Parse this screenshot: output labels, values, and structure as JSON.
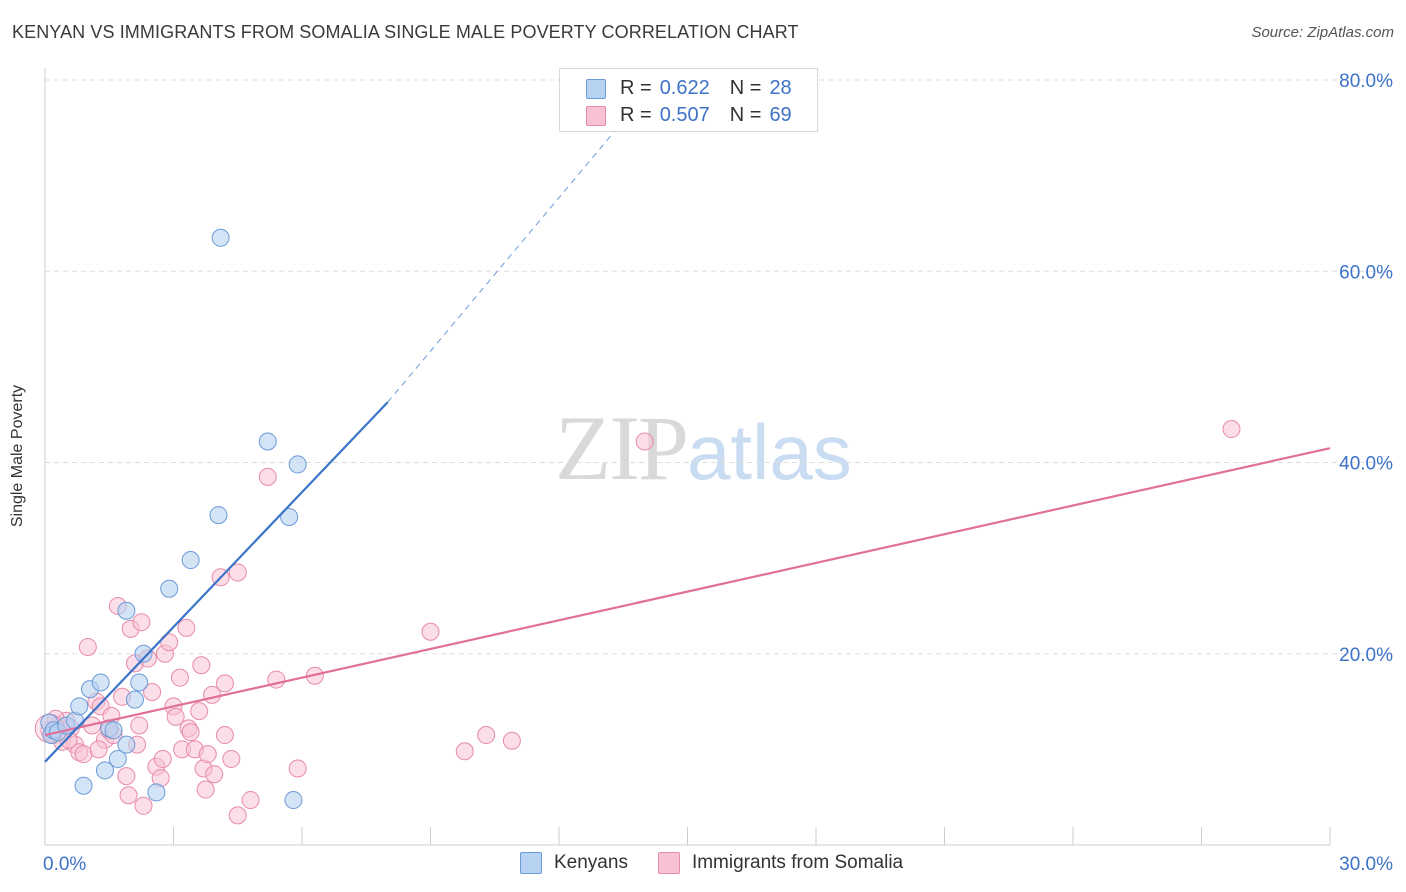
{
  "title": "KENYAN VS IMMIGRANTS FROM SOMALIA SINGLE MALE POVERTY CORRELATION CHART",
  "source": "Source: ZipAtlas.com",
  "watermark": {
    "zip": "ZIP",
    "atlas": "atlas"
  },
  "legend": {
    "rows": [
      {
        "r_label": "R =",
        "r_value": "0.622",
        "n_label": "N =",
        "n_value": "28"
      },
      {
        "r_label": "R =",
        "r_value": "0.507",
        "n_label": "N =",
        "n_value": "69"
      }
    ]
  },
  "bottom_legend": {
    "kenyans": "Kenyans",
    "somalia": "Immigrants from Somalia"
  },
  "colors": {
    "kenyan_fill": "#b8d2f2",
    "kenyan_stroke": "#6b9ad8",
    "kenyan_line": "#3a73c8",
    "somalia_fill": "#f7c3d4",
    "somalia_stroke": "#e88aab",
    "somalia_line": "#e0709a",
    "tick_label": "#3d72c8",
    "grid": "#dddddd"
  },
  "chart_data": {
    "type": "scatter",
    "title": "KENYAN VS IMMIGRANTS FROM SOMALIA SINGLE MALE POVERTY CORRELATION CHART",
    "xlabel": "",
    "ylabel": "Single Male Poverty",
    "xlim": [
      0,
      30
    ],
    "ylim": [
      0,
      80
    ],
    "x_tick_labels": [
      "0.0%",
      "30.0%"
    ],
    "y_tick_labels": [
      "20.0%",
      "40.0%",
      "60.0%",
      "80.0%"
    ],
    "y_ticks": [
      20,
      40,
      60,
      80
    ],
    "series": [
      {
        "name": "Kenyans",
        "r": 0.622,
        "n": 28,
        "points": [
          [
            0.1,
            12.8
          ],
          [
            0.15,
            11.5
          ],
          [
            0.2,
            12.0
          ],
          [
            0.3,
            11.8
          ],
          [
            0.5,
            12.5
          ],
          [
            0.7,
            13.0
          ],
          [
            0.8,
            14.5
          ],
          [
            0.9,
            6.2
          ],
          [
            1.05,
            16.3
          ],
          [
            1.3,
            17.0
          ],
          [
            1.5,
            12.2
          ],
          [
            1.4,
            7.8
          ],
          [
            1.6,
            12.0
          ],
          [
            1.7,
            9.0
          ],
          [
            1.9,
            10.5
          ],
          [
            1.9,
            24.5
          ],
          [
            2.1,
            15.2
          ],
          [
            2.2,
            17.0
          ],
          [
            2.3,
            20.0
          ],
          [
            2.6,
            5.5
          ],
          [
            2.9,
            26.8
          ],
          [
            3.4,
            29.8
          ],
          [
            4.05,
            34.5
          ],
          [
            4.1,
            63.5
          ],
          [
            5.2,
            42.2
          ],
          [
            5.7,
            34.3
          ],
          [
            5.9,
            39.8
          ],
          [
            5.8,
            4.7
          ]
        ],
        "trend": {
          "x0": 0,
          "y0": 8.7,
          "x1": 8.0,
          "y1": 46.3,
          "dash_to_x": 14.3,
          "dash_to_y": 80
        }
      },
      {
        "name": "Immigrants from Somalia",
        "r": 0.507,
        "n": 69,
        "points": [
          [
            0.1,
            12.0
          ],
          [
            0.2,
            11.5
          ],
          [
            0.3,
            12.5
          ],
          [
            0.4,
            10.8
          ],
          [
            0.5,
            13.0
          ],
          [
            0.6,
            12.2
          ],
          [
            0.7,
            10.5
          ],
          [
            0.8,
            9.7
          ],
          [
            0.9,
            9.5
          ],
          [
            1.0,
            20.7
          ],
          [
            1.1,
            12.5
          ],
          [
            1.2,
            15.0
          ],
          [
            1.3,
            14.5
          ],
          [
            1.4,
            11.0
          ],
          [
            1.5,
            12.0
          ],
          [
            1.6,
            11.5
          ],
          [
            1.7,
            25.0
          ],
          [
            1.8,
            15.5
          ],
          [
            1.9,
            7.2
          ],
          [
            1.95,
            5.2
          ],
          [
            2.0,
            22.6
          ],
          [
            2.1,
            19.0
          ],
          [
            2.2,
            12.5
          ],
          [
            2.25,
            23.3
          ],
          [
            2.3,
            4.1
          ],
          [
            2.4,
            19.5
          ],
          [
            2.5,
            16.0
          ],
          [
            2.6,
            8.2
          ],
          [
            2.7,
            7.0
          ],
          [
            2.75,
            9.0
          ],
          [
            2.8,
            20.0
          ],
          [
            2.9,
            21.2
          ],
          [
            3.0,
            14.5
          ],
          [
            3.05,
            13.4
          ],
          [
            3.15,
            17.5
          ],
          [
            3.2,
            10.0
          ],
          [
            3.3,
            22.7
          ],
          [
            3.35,
            12.2
          ],
          [
            3.5,
            10.0
          ],
          [
            3.6,
            14.0
          ],
          [
            3.65,
            18.8
          ],
          [
            3.7,
            8.0
          ],
          [
            3.75,
            5.8
          ],
          [
            3.8,
            9.5
          ],
          [
            3.9,
            15.7
          ],
          [
            3.95,
            7.4
          ],
          [
            4.1,
            28.0
          ],
          [
            4.2,
            11.5
          ],
          [
            4.2,
            16.9
          ],
          [
            4.5,
            28.5
          ],
          [
            4.5,
            3.1
          ],
          [
            4.8,
            4.7
          ],
          [
            5.2,
            38.5
          ],
          [
            5.4,
            17.3
          ],
          [
            5.9,
            8.0
          ],
          [
            6.3,
            17.7
          ],
          [
            9.0,
            22.3
          ],
          [
            9.8,
            9.8
          ],
          [
            10.3,
            11.5
          ],
          [
            10.9,
            10.9
          ],
          [
            14.0,
            42.2
          ],
          [
            27.7,
            43.5
          ],
          [
            0.25,
            13.2
          ],
          [
            0.55,
            11.0
          ],
          [
            1.25,
            10.0
          ],
          [
            1.55,
            13.5
          ],
          [
            2.15,
            10.5
          ],
          [
            3.4,
            11.8
          ],
          [
            4.35,
            9.0
          ]
        ],
        "trend": {
          "x0": 0,
          "y0": 11.5,
          "x1": 30,
          "y1": 41.5
        }
      }
    ]
  }
}
